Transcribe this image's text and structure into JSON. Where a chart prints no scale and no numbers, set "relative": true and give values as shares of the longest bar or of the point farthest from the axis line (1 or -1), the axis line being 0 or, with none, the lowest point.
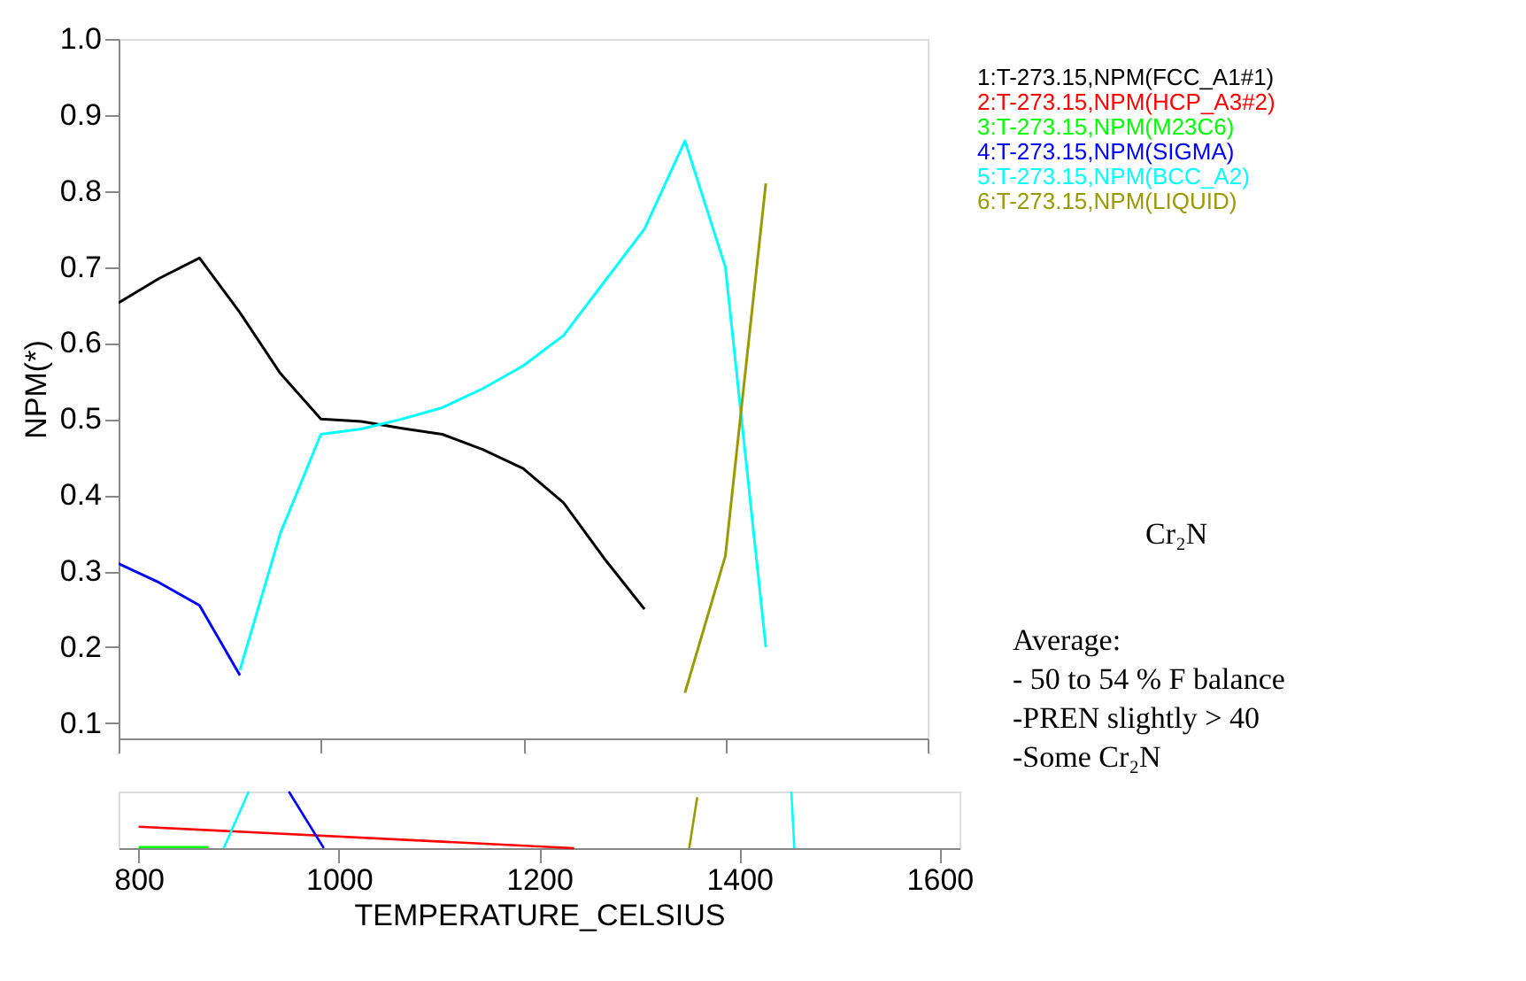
{
  "chart_data": [
    {
      "type": "line",
      "ylabel": "NPM(*)",
      "categories": [
        null,
        null,
        null,
        null,
        null,
        null,
        null,
        null,
        null,
        null,
        null,
        null,
        null,
        null,
        null,
        null,
        null,
        null,
        null,
        null,
        null
      ],
      "ylim": [
        0.08,
        1.0
      ],
      "yticks": [
        0.1,
        0.2,
        0.3,
        0.4,
        0.5,
        0.6,
        0.7,
        0.8,
        0.9,
        {
          "value": 1,
          "label": "1.0"
        }
      ],
      "grid": false,
      "series": [
        {
          "name": "1:T-273.15,NPM(FCC_A1#1)",
          "color": "#000000",
          "values": [
            0.653,
            0.685,
            0.712,
            0.64,
            0.56,
            0.5,
            0.497,
            0.488,
            0.48,
            0.46,
            0.435,
            0.39,
            0.317,
            0.25,
            null,
            null,
            null,
            null,
            null,
            null,
            null
          ]
        },
        {
          "name": "2:T-273.15,NPM(HCP_A3#2)",
          "color": "#ff0000",
          "values": [
            null,
            null,
            null,
            null,
            null,
            null,
            null,
            null,
            null,
            null,
            null,
            null,
            null,
            null,
            null,
            null,
            null,
            null,
            null,
            null,
            null
          ]
        },
        {
          "name": "3:T-273.15,NPM(M23C6)",
          "color": "#00ff00",
          "values": [
            null,
            null,
            null,
            null,
            null,
            null,
            null,
            null,
            null,
            null,
            null,
            null,
            null,
            null,
            null,
            null,
            null,
            null,
            null,
            null,
            null
          ]
        },
        {
          "name": "4:T-273.15,NPM(SIGMA)",
          "color": "#0000ff",
          "values": [
            0.31,
            0.285,
            0.255,
            0.163,
            null,
            null,
            null,
            null,
            null,
            null,
            null,
            null,
            null,
            null,
            null,
            null,
            null,
            null,
            null,
            null,
            null
          ]
        },
        {
          "name": "5:T-273.15,NPM(BCC_A2)",
          "color": "#00ffff",
          "values": [
            null,
            null,
            null,
            0.17,
            0.35,
            0.48,
            0.487,
            0.5,
            0.515,
            0.54,
            0.57,
            0.61,
            0.68,
            0.75,
            0.866,
            0.7,
            0.2,
            null,
            null,
            null,
            null
          ]
        },
        {
          "name": "6:T-273.15,NPM(LIQUID)",
          "color": "#999900",
          "values": [
            null,
            null,
            null,
            null,
            null,
            null,
            null,
            null,
            null,
            null,
            null,
            null,
            null,
            null,
            0.14,
            0.32,
            0.81,
            null,
            null,
            null,
            null
          ]
        }
      ],
      "annotations": [
        "Cr₂N",
        "Average:",
        "- 50 to 54 % F balance",
        "-PREN slightly > 40",
        "-Some Cr₂N"
      ]
    },
    {
      "type": "line",
      "xlabel": "TEMPERATURE_CELSIUS",
      "relative": true,
      "xlim": [
        780,
        1620
      ],
      "xticks": [
        800,
        1000,
        1200,
        1400,
        1600
      ],
      "grid": false,
      "series": [
        {
          "color": "#ff0000",
          "x": [
            800,
            1235
          ],
          "values": [
            0.38,
            0
          ]
        },
        {
          "color": "#00ff00",
          "x": [
            800,
            870
          ],
          "values": [
            0.02,
            0.02
          ]
        },
        {
          "color": "#00ffff",
          "x": [
            885,
            910
          ],
          "values": [
            0,
            1
          ]
        },
        {
          "color": "#0000ff",
          "x": [
            950,
            985
          ],
          "values": [
            1,
            0
          ]
        },
        {
          "color": "#999900",
          "x": [
            1350,
            1358
          ],
          "values": [
            0,
            0.9
          ]
        },
        {
          "color": "#00ffff",
          "x": [
            1455,
            1452
          ],
          "values": [
            0,
            1
          ]
        }
      ]
    }
  ]
}
